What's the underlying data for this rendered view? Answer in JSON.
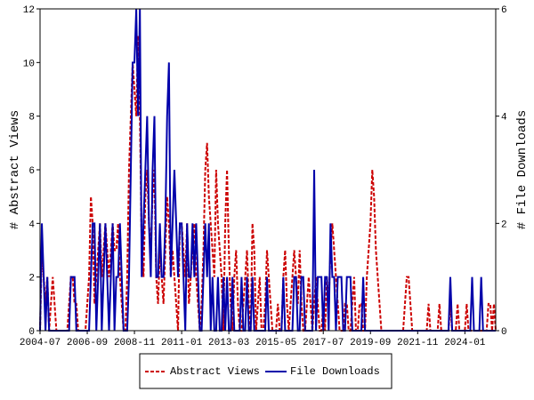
{
  "chart_data": {
    "type": "line",
    "x": [
      "2004-07",
      "2004-08",
      "2004-09",
      "2004-10",
      "2004-11",
      "2004-12",
      "2005-01",
      "2005-02",
      "2005-03",
      "2005-04",
      "2005-05",
      "2005-06",
      "2005-07",
      "2005-08",
      "2005-09",
      "2005-10",
      "2005-11",
      "2005-12",
      "2006-01",
      "2006-02",
      "2006-03",
      "2006-04",
      "2006-05",
      "2006-06",
      "2006-07",
      "2006-08",
      "2006-09",
      "2006-10",
      "2006-11",
      "2006-12",
      "2007-01",
      "2007-02",
      "2007-03",
      "2007-04",
      "2007-05",
      "2007-06",
      "2007-07",
      "2007-08",
      "2007-09",
      "2007-10",
      "2007-11",
      "2007-12",
      "2008-01",
      "2008-02",
      "2008-03",
      "2008-04",
      "2008-05",
      "2008-06",
      "2008-07",
      "2008-08",
      "2008-09",
      "2008-10",
      "2008-11",
      "2008-12",
      "2009-01",
      "2009-02",
      "2009-03",
      "2009-04",
      "2009-05",
      "2009-06",
      "2009-07",
      "2009-08",
      "2009-09",
      "2009-10",
      "2009-11",
      "2009-12",
      "2010-01",
      "2010-02",
      "2010-03",
      "2010-04",
      "2010-05",
      "2010-06",
      "2010-07",
      "2010-08",
      "2010-09",
      "2010-10",
      "2010-11",
      "2010-12",
      "2011-01",
      "2011-02",
      "2011-03",
      "2011-04",
      "2011-05",
      "2011-06",
      "2011-07",
      "2011-08",
      "2011-09",
      "2011-10",
      "2011-11",
      "2011-12",
      "2012-01",
      "2012-02",
      "2012-03",
      "2012-04",
      "2012-05",
      "2012-06",
      "2012-07",
      "2012-08",
      "2012-09",
      "2012-10",
      "2012-11",
      "2012-12",
      "2013-01",
      "2013-02",
      "2013-03",
      "2013-04",
      "2013-05",
      "2013-06",
      "2013-07",
      "2013-08",
      "2013-09",
      "2013-10",
      "2013-11",
      "2013-12",
      "2014-01",
      "2014-02",
      "2014-03",
      "2014-04",
      "2014-05",
      "2014-06",
      "2014-07",
      "2014-08",
      "2014-09",
      "2014-10",
      "2014-11",
      "2014-12",
      "2015-01",
      "2015-02",
      "2015-03",
      "2015-04",
      "2015-05",
      "2015-06",
      "2015-07",
      "2015-08",
      "2015-09",
      "2015-10",
      "2015-11",
      "2015-12",
      "2016-01",
      "2016-02",
      "2016-03",
      "2016-04",
      "2016-05",
      "2016-06",
      "2016-07",
      "2016-08",
      "2016-09",
      "2016-10",
      "2016-11",
      "2016-12",
      "2017-01",
      "2017-02",
      "2017-03",
      "2017-04",
      "2017-05",
      "2017-06",
      "2017-07",
      "2017-08",
      "2017-09",
      "2017-10",
      "2017-11",
      "2017-12",
      "2018-01",
      "2018-02",
      "2018-03",
      "2018-04",
      "2018-05",
      "2018-06",
      "2018-07",
      "2018-08",
      "2018-09",
      "2018-10",
      "2018-11",
      "2018-12",
      "2019-01",
      "2019-02",
      "2019-03",
      "2019-04",
      "2019-05",
      "2019-06",
      "2019-07",
      "2019-08",
      "2019-09",
      "2019-10",
      "2019-11",
      "2019-12",
      "2020-01",
      "2020-02",
      "2020-03",
      "2020-04",
      "2020-05",
      "2020-06",
      "2020-07",
      "2020-08",
      "2020-09",
      "2020-10",
      "2020-11",
      "2020-12",
      "2021-01",
      "2021-02",
      "2021-03",
      "2021-04",
      "2021-05",
      "2021-06",
      "2021-07",
      "2021-08",
      "2021-09",
      "2021-10",
      "2021-11",
      "2021-12",
      "2022-01",
      "2022-02",
      "2022-03",
      "2022-04",
      "2022-05",
      "2022-06",
      "2022-07",
      "2022-08",
      "2022-09",
      "2022-10",
      "2022-11",
      "2022-12",
      "2023-01",
      "2023-02",
      "2023-03",
      "2023-04",
      "2023-05",
      "2023-06",
      "2023-07",
      "2023-08",
      "2023-09",
      "2023-10",
      "2023-11",
      "2023-12",
      "2024-01",
      "2024-02",
      "2024-03",
      "2024-04",
      "2024-05",
      "2024-06",
      "2024-07",
      "2024-08",
      "2024-09",
      "2024-10",
      "2024-11",
      "2024-12",
      "2025-01",
      "2025-02",
      "2025-03",
      "2025-04",
      "2025-05",
      "2025-06"
    ],
    "xticks": [
      "2004-07",
      "2006-09",
      "2008-11",
      "2011-01",
      "2013-03",
      "2015-05",
      "2017-07",
      "2019-09",
      "2021-11",
      "2024-01"
    ],
    "ylabel": "# Abstract Views",
    "y2label": "# File Downloads",
    "ylim": [
      0,
      12
    ],
    "yticks": [
      0,
      2,
      4,
      6,
      8,
      10,
      12
    ],
    "y2lim": [
      0,
      6
    ],
    "y2ticks": [
      0,
      2,
      4,
      6
    ],
    "series": [
      {
        "name": "Abstract Views",
        "color": "#cc0000",
        "dash": true,
        "values": [
          0,
          3,
          2,
          1,
          2,
          0,
          1,
          2,
          1,
          0,
          0,
          0,
          0,
          0,
          0,
          0,
          1,
          2,
          2,
          1,
          1,
          0,
          0,
          0,
          0,
          0,
          1,
          2,
          5,
          4,
          1,
          2,
          3,
          4,
          2,
          3,
          4,
          3,
          2,
          3,
          4,
          3,
          3,
          4,
          2,
          1,
          0,
          0,
          2,
          6,
          8,
          10,
          9,
          8,
          11,
          8,
          3,
          2,
          5,
          6,
          4,
          3,
          5,
          6,
          2,
          1,
          3,
          2,
          1,
          3,
          5,
          4,
          2,
          3,
          2,
          1,
          0,
          4,
          4,
          3,
          2,
          4,
          1,
          2,
          3,
          4,
          2,
          1,
          0,
          1,
          3,
          6,
          7,
          5,
          4,
          3,
          2,
          6,
          4,
          3,
          2,
          0,
          4,
          6,
          3,
          1,
          0,
          2,
          3,
          1,
          0,
          0,
          1,
          2,
          3,
          1,
          0,
          4,
          3,
          0,
          1,
          2,
          0,
          0,
          1,
          3,
          2,
          1,
          0,
          0,
          0,
          1,
          0,
          0,
          2,
          3,
          1,
          0,
          1,
          2,
          3,
          2,
          1,
          3,
          1,
          0,
          0,
          1,
          2,
          1,
          0,
          1,
          2,
          1,
          0,
          0,
          1,
          0,
          2,
          1,
          3,
          4,
          3,
          2,
          1,
          0,
          0,
          0,
          1,
          1,
          0,
          0,
          1,
          2,
          0,
          0,
          1,
          1,
          0,
          0,
          2,
          3,
          4,
          6,
          5,
          3,
          2,
          1,
          0,
          0,
          0,
          0,
          0,
          0,
          0,
          0,
          0,
          0,
          0,
          0,
          0,
          1,
          2,
          2,
          1,
          0,
          0,
          0,
          0,
          0,
          0,
          0,
          0,
          0,
          1,
          0,
          0,
          0,
          0,
          0,
          1,
          0,
          0,
          0,
          0,
          0,
          1,
          0,
          0,
          0,
          1,
          0,
          0,
          0,
          0,
          1,
          0,
          0,
          0,
          0,
          0,
          0,
          0,
          0,
          0,
          0,
          0,
          1,
          1,
          0,
          1,
          0
        ]
      },
      {
        "name": "File Downloads",
        "color": "#0000aa",
        "dash": false,
        "axis": "y2",
        "values": [
          0,
          2,
          1,
          0,
          1,
          0,
          0,
          0,
          0,
          0,
          0,
          0,
          0,
          0,
          0,
          0,
          0,
          1,
          1,
          1,
          0,
          0,
          0,
          0,
          0,
          0,
          0,
          0,
          1,
          2,
          2,
          0,
          1,
          2,
          0,
          1,
          2,
          1,
          0,
          1,
          2,
          0,
          1,
          1,
          2,
          1,
          0,
          0,
          0,
          1,
          3,
          5,
          5,
          6,
          4,
          6,
          1,
          2,
          3,
          4,
          2,
          1,
          3,
          4,
          1,
          1,
          2,
          1,
          1,
          2,
          4,
          5,
          1,
          2,
          3,
          2,
          1,
          2,
          2,
          1,
          0,
          2,
          1,
          1,
          2,
          1,
          2,
          1,
          0,
          0,
          1,
          2,
          1,
          2,
          0,
          1,
          0,
          0,
          1,
          0,
          0,
          1,
          0,
          1,
          0,
          0,
          1,
          0,
          0,
          0,
          0,
          1,
          0,
          0,
          1,
          0,
          0,
          1,
          0,
          0,
          0,
          0,
          0,
          0,
          0,
          1,
          0,
          0,
          0,
          0,
          0,
          0,
          0,
          0,
          1,
          0,
          0,
          0,
          0,
          0,
          1,
          1,
          0,
          0,
          1,
          1,
          0,
          0,
          0,
          0,
          0,
          3,
          0,
          1,
          1,
          1,
          0,
          1,
          1,
          0,
          2,
          1,
          1,
          0,
          1,
          1,
          1,
          0,
          0,
          1,
          1,
          1,
          0,
          0,
          0,
          0,
          0,
          0,
          1,
          0,
          0,
          0,
          0,
          0,
          0,
          0,
          0,
          0,
          0,
          0,
          0,
          0,
          0,
          0,
          0,
          0,
          0,
          0,
          0,
          0,
          0,
          0,
          0,
          0,
          0,
          0,
          0,
          0,
          0,
          0,
          0,
          0,
          0,
          0,
          0,
          0,
          0,
          0,
          0,
          0,
          0,
          0,
          0,
          0,
          0,
          0,
          1,
          0,
          0,
          0,
          0,
          0,
          0,
          0,
          0,
          0,
          0,
          0,
          1,
          0,
          0,
          0,
          0,
          1,
          0,
          0,
          0,
          0,
          0,
          0,
          0,
          0
        ]
      }
    ]
  }
}
